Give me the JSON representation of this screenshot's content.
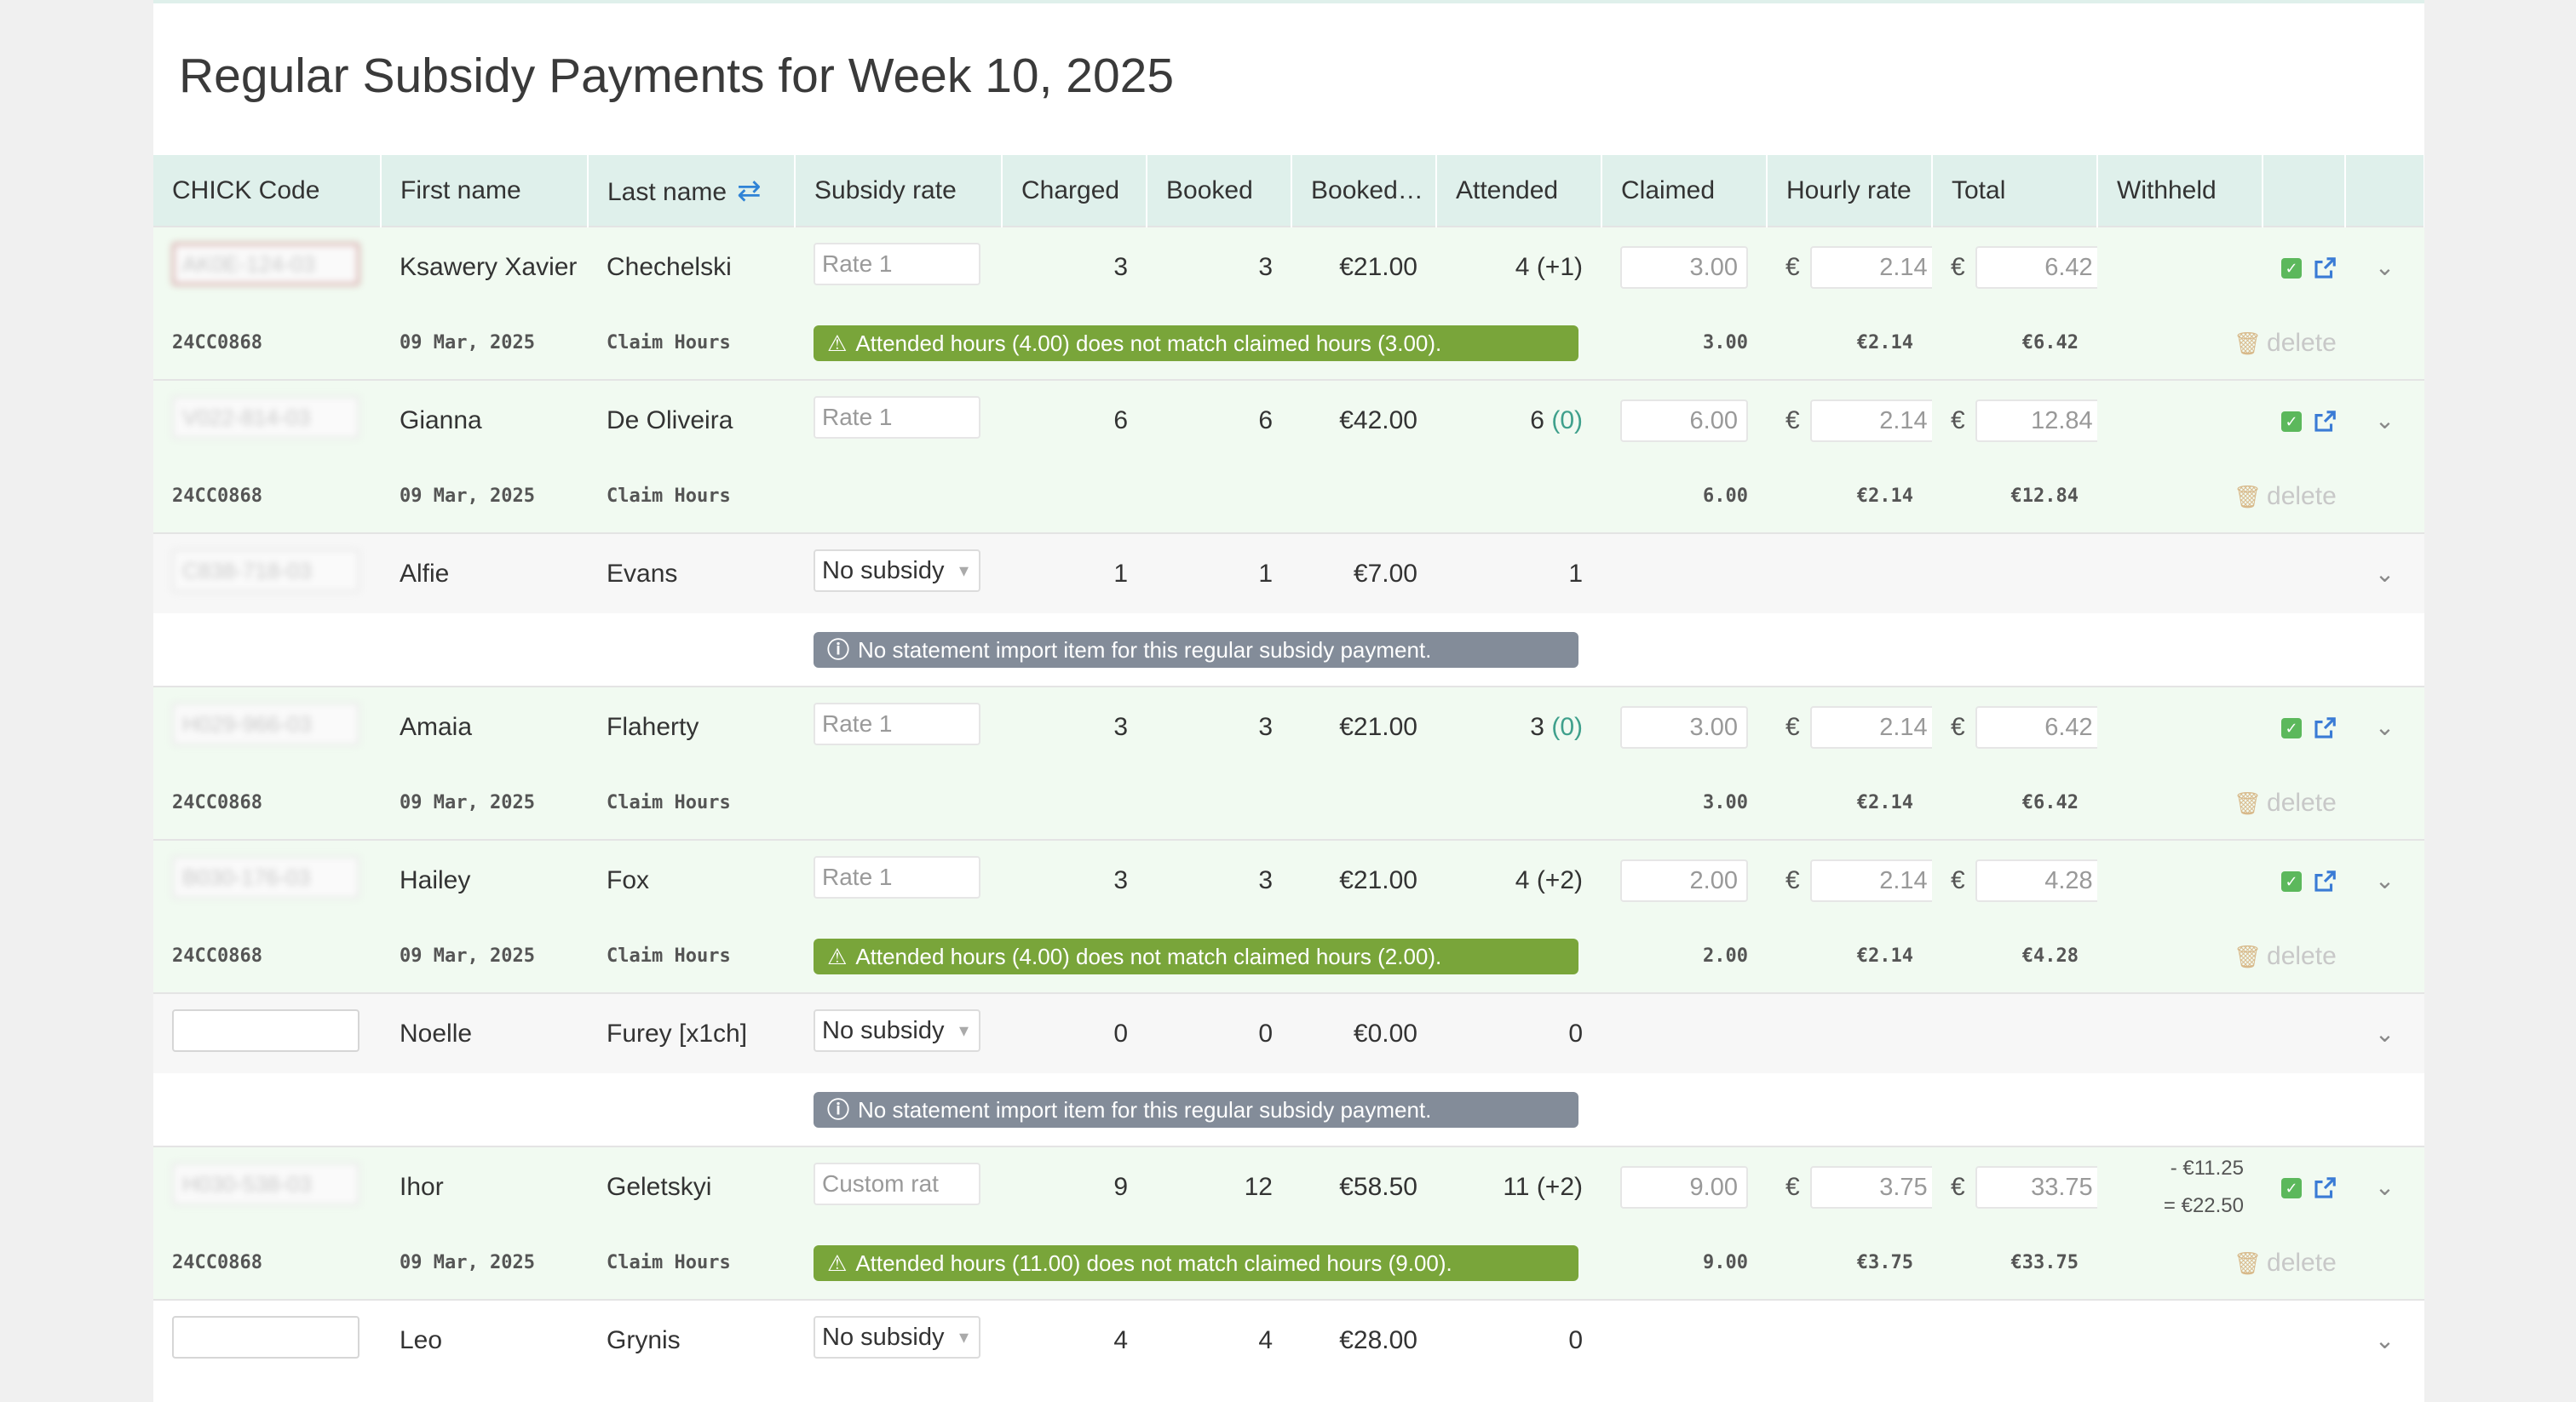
{
  "page": {
    "title": "Regular Subsidy Payments for Week 10, 2025"
  },
  "columns": {
    "code": "CHICK Code",
    "first": "First name",
    "last": "Last name",
    "rate": "Subsidy rate",
    "charged": "Charged",
    "booked": "Booked",
    "booked_amt": "Booked…",
    "attended": "Attended",
    "claimed": "Claimed",
    "hourly": "Hourly rate",
    "total": "Total",
    "withheld": "Withheld"
  },
  "icons": {
    "sort": "swap-arrows-icon",
    "approve": "check-square-icon",
    "open": "external-link-icon",
    "expand": "chevron-down-icon",
    "trash": "trash-icon",
    "warning": "warning-triangle-icon",
    "info": "info-circle-icon"
  },
  "colors": {
    "header_bg": "#dff0eb",
    "row_green": "#f1faf1",
    "warn_banner": "#79a53a",
    "info_banner": "#838c99",
    "check": "#5cb85c",
    "link": "#2f83d6"
  },
  "currency": "€",
  "delete_label": "delete",
  "rows": [
    {
      "code": "AK0E-124-03",
      "first": "Ksawery Xavier",
      "last": "Chechelski",
      "rate": "Rate 1",
      "charged": "3",
      "booked": "3",
      "booked_amt": "€21.00",
      "att_base": "4",
      "att_extra": "(+1)",
      "claimed": "3.00",
      "hourly": "2.14",
      "total": "6.42",
      "sub": {
        "ref": "24CC0868",
        "date": "09 Mar, 2025",
        "type": "Claim Hours",
        "claimed": "3.00",
        "hourly": "€2.14",
        "total": "€6.42",
        "message": "Attended hours (4.00) does not match claimed hours (3.00)."
      }
    },
    {
      "code": "V022-814-03",
      "first": "Gianna",
      "last": "De Oliveira",
      "rate": "Rate 1",
      "charged": "6",
      "booked": "6",
      "booked_amt": "€42.00",
      "att_base": "6",
      "att_extra": "(0)",
      "claimed": "6.00",
      "hourly": "2.14",
      "total": "12.84",
      "sub": {
        "ref": "24CC0868",
        "date": "09 Mar, 2025",
        "type": "Claim Hours",
        "claimed": "6.00",
        "hourly": "€2.14",
        "total": "€12.84",
        "message": ""
      }
    },
    {
      "code": "C838-718-03",
      "first": "Alfie",
      "last": "Evans",
      "rate": "No subsidy",
      "charged": "1",
      "booked": "1",
      "booked_amt": "€7.00",
      "attended": "1",
      "info": "No statement import item for this regular subsidy payment."
    },
    {
      "code": "H029-966-03",
      "first": "Amaia",
      "last": "Flaherty",
      "rate": "Rate 1",
      "charged": "3",
      "booked": "3",
      "booked_amt": "€21.00",
      "att_base": "3",
      "att_extra": "(0)",
      "claimed": "3.00",
      "hourly": "2.14",
      "total": "6.42",
      "sub": {
        "ref": "24CC0868",
        "date": "09 Mar, 2025",
        "type": "Claim Hours",
        "claimed": "3.00",
        "hourly": "€2.14",
        "total": "€6.42",
        "message": ""
      }
    },
    {
      "code": "B030-176-03",
      "first": "Hailey",
      "last": "Fox",
      "rate": "Rate 1",
      "charged": "3",
      "booked": "3",
      "booked_amt": "€21.00",
      "att_base": "4",
      "att_extra": "(+2)",
      "claimed": "2.00",
      "hourly": "2.14",
      "total": "4.28",
      "sub": {
        "ref": "24CC0868",
        "date": "09 Mar, 2025",
        "type": "Claim Hours",
        "claimed": "2.00",
        "hourly": "€2.14",
        "total": "€4.28",
        "message": "Attended hours (4.00) does not match claimed hours (2.00)."
      }
    },
    {
      "code": "",
      "first": "Noelle",
      "last": "Furey [x1ch]",
      "rate": "No subsidy",
      "charged": "0",
      "booked": "0",
      "booked_amt": "€0.00",
      "attended": "0",
      "info": "No statement import item for this regular subsidy payment."
    },
    {
      "code": "H030-538-03",
      "first": "Ihor",
      "last": "Geletskyi",
      "rate": "Custom rat",
      "charged": "9",
      "booked": "12",
      "booked_amt": "€58.50",
      "att_base": "11",
      "att_extra": "(+2)",
      "claimed": "9.00",
      "hourly": "3.75",
      "total": "33.75",
      "withheld_minus": "- €11.25",
      "withheld_eq": "= €22.50",
      "sub": {
        "ref": "24CC0868",
        "date": "09 Mar, 2025",
        "type": "Claim Hours",
        "claimed": "9.00",
        "hourly": "€3.75",
        "total": "€33.75",
        "message": "Attended hours (11.00) does not match claimed hours (9.00)."
      }
    },
    {
      "code": "",
      "first": "Leo",
      "last": "Grynis",
      "rate": "No subsidy",
      "charged": "4",
      "booked": "4",
      "booked_amt": "€28.00",
      "attended": "0"
    }
  ]
}
